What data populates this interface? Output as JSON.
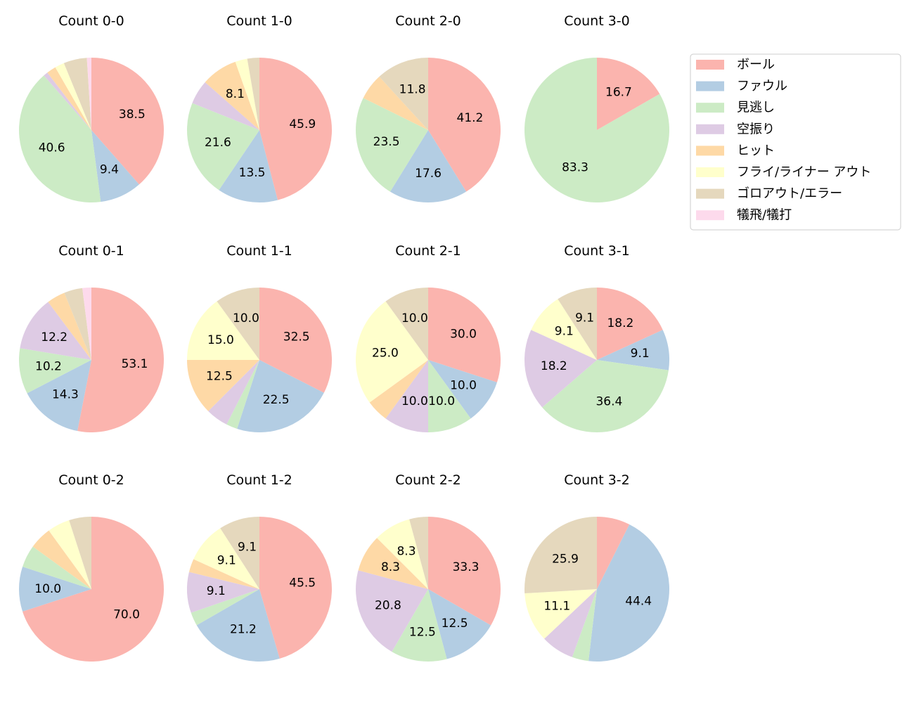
{
  "chart_data": {
    "type": "pie",
    "legend": {
      "placement": "top-right",
      "entries": [
        "ボール",
        "ファウル",
        "見逃し",
        "空振り",
        "ヒット",
        "フライ/ライナー アウト",
        "ゴロアウト/エラー",
        "犠飛/犠打"
      ]
    },
    "colors": [
      "#fbb4ae",
      "#b3cde3",
      "#ccebc5",
      "#decbe4",
      "#fed9a6",
      "#ffffcc",
      "#e5d8bd",
      "#fddaec"
    ],
    "start_angle_deg": 90,
    "direction": "clockwise",
    "label_format": "%.1f",
    "charts": [
      {
        "title": "Count 0-0",
        "values": [
          38.5,
          9.4,
          40.6,
          1.0,
          2.1,
          2.1,
          5.2,
          1.0
        ]
      },
      {
        "title": "Count 1-0",
        "values": [
          45.9,
          13.5,
          21.6,
          5.4,
          8.1,
          2.7,
          2.7,
          0
        ]
      },
      {
        "title": "Count 2-0",
        "values": [
          41.2,
          17.6,
          23.5,
          0,
          5.9,
          0,
          11.8,
          0
        ]
      },
      {
        "title": "Count 3-0",
        "values": [
          16.7,
          0,
          83.3,
          0,
          0,
          0,
          0,
          0
        ]
      },
      {
        "title": "Count 0-1",
        "values": [
          53.1,
          14.3,
          10.2,
          12.2,
          4.1,
          0,
          4.1,
          2.0
        ]
      },
      {
        "title": "Count 1-1",
        "values": [
          32.5,
          22.5,
          2.5,
          5.0,
          12.5,
          15.0,
          10.0,
          0
        ]
      },
      {
        "title": "Count 2-1",
        "values": [
          30.0,
          10.0,
          10.0,
          10.0,
          5.0,
          25.0,
          10.0,
          0
        ]
      },
      {
        "title": "Count 3-1",
        "values": [
          18.2,
          9.1,
          36.4,
          18.2,
          0,
          9.1,
          9.1,
          0
        ]
      },
      {
        "title": "Count 0-2",
        "values": [
          70.0,
          10.0,
          5.0,
          0,
          5.0,
          5.0,
          5.0,
          0
        ]
      },
      {
        "title": "Count 1-2",
        "values": [
          45.5,
          21.2,
          3.0,
          9.1,
          3.0,
          9.1,
          9.1,
          0
        ]
      },
      {
        "title": "Count 2-2",
        "values": [
          33.3,
          12.5,
          12.5,
          20.8,
          8.3,
          8.3,
          4.2,
          0
        ]
      },
      {
        "title": "Count 3-2",
        "values": [
          7.4,
          44.4,
          3.7,
          7.4,
          0,
          11.1,
          25.9,
          0
        ]
      }
    ]
  }
}
